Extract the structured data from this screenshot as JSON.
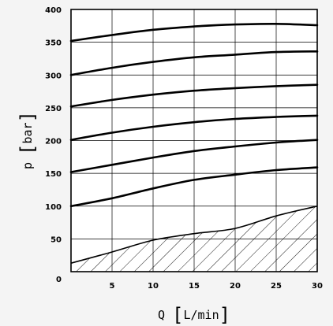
{
  "chart_data": {
    "type": "line",
    "xlabel_var": "Q",
    "xlabel_unit": "L/min",
    "ylabel_var": "p",
    "ylabel_unit": "bar",
    "xlim": [
      0,
      30
    ],
    "ylim": [
      0,
      400
    ],
    "x_ticks": [
      "5",
      "10",
      "15",
      "20",
      "25",
      "30"
    ],
    "y_ticks": [
      "50",
      "100",
      "150",
      "200",
      "250",
      "300",
      "350",
      "400"
    ],
    "origin_label": "0",
    "grid": true,
    "series": [
      {
        "x": [
          0,
          5,
          10,
          15,
          20,
          25,
          30
        ],
        "values": [
          100,
          112,
          127,
          140,
          148,
          155,
          159
        ]
      },
      {
        "x": [
          0,
          5,
          10,
          15,
          20,
          25,
          30
        ],
        "values": [
          152,
          163,
          174,
          184,
          191,
          197,
          201
        ]
      },
      {
        "x": [
          0,
          5,
          10,
          15,
          20,
          25,
          30
        ],
        "values": [
          201,
          212,
          221,
          228,
          233,
          236,
          238
        ]
      },
      {
        "x": [
          0,
          5,
          10,
          15,
          20,
          25,
          30
        ],
        "values": [
          252,
          262,
          270,
          276,
          280,
          283,
          285
        ]
      },
      {
        "x": [
          0,
          5,
          10,
          15,
          20,
          25,
          30
        ],
        "values": [
          300,
          311,
          320,
          327,
          331,
          335,
          336
        ]
      },
      {
        "x": [
          0,
          5,
          10,
          15,
          20,
          25,
          30
        ],
        "values": [
          352,
          361,
          369,
          374,
          377,
          378,
          376
        ]
      }
    ],
    "hatched_region": {
      "x": [
        0,
        5,
        10,
        15,
        20,
        25,
        30
      ],
      "values": [
        13,
        30,
        48,
        58,
        66,
        85,
        100
      ]
    }
  }
}
